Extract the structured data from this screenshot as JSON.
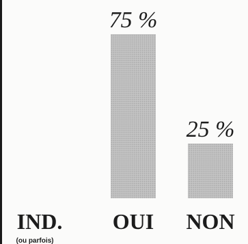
{
  "chart_data": {
    "type": "bar",
    "categories": [
      "IND.",
      "OUI",
      "NON"
    ],
    "values": [
      0,
      75,
      25
    ],
    "data_labels": [
      "",
      "75 %",
      "25 %"
    ],
    "category_note": {
      "IND.": "(ou parfois)"
    },
    "ylim": [
      0,
      75
    ],
    "grid": false,
    "bar_color": "#b9b9b9"
  }
}
